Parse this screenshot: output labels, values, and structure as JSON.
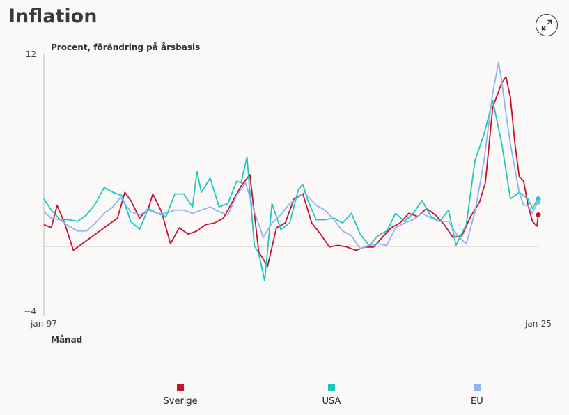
{
  "header": {
    "title": "Inflation",
    "expand_icon": "expand-arrows-icon"
  },
  "chart_data": {
    "type": "line",
    "ylabel": "Procent, förändring på årsbasis",
    "xlabel": "Månad",
    "ylim": [
      -4,
      12
    ],
    "y_tick_labels": [
      "12",
      "−4"
    ],
    "x_tick_labels": [
      "jan-97",
      "jan-25"
    ],
    "x_start": "1997-01",
    "x_end": "2025-01",
    "grid": false,
    "legend_position": "bottom",
    "series": [
      {
        "name": "Sverige",
        "color": "#c8102e",
        "points": [
          [
            "1997-01",
            1.4
          ],
          [
            "1997-06",
            1.2
          ],
          [
            "1997-10",
            2.6
          ],
          [
            "1998-03",
            1.5
          ],
          [
            "1998-09",
            -0.2
          ],
          [
            "1999-03",
            0.2
          ],
          [
            "1999-09",
            0.6
          ],
          [
            "2000-03",
            1.0
          ],
          [
            "2000-09",
            1.4
          ],
          [
            "2001-03",
            1.8
          ],
          [
            "2001-08",
            3.4
          ],
          [
            "2001-12",
            2.9
          ],
          [
            "2002-06",
            1.8
          ],
          [
            "2002-12",
            2.4
          ],
          [
            "2003-03",
            3.3
          ],
          [
            "2003-09",
            2.2
          ],
          [
            "2004-03",
            0.2
          ],
          [
            "2004-09",
            1.2
          ],
          [
            "2005-03",
            0.8
          ],
          [
            "2005-09",
            1.0
          ],
          [
            "2006-03",
            1.4
          ],
          [
            "2006-09",
            1.5
          ],
          [
            "2007-03",
            1.8
          ],
          [
            "2007-09",
            2.8
          ],
          [
            "2008-03",
            3.8
          ],
          [
            "2008-09",
            4.5
          ],
          [
            "2009-03",
            -0.3
          ],
          [
            "2009-09",
            -1.2
          ],
          [
            "2010-03",
            1.2
          ],
          [
            "2010-09",
            1.5
          ],
          [
            "2011-03",
            3.0
          ],
          [
            "2011-09",
            3.3
          ],
          [
            "2012-03",
            1.5
          ],
          [
            "2012-09",
            0.8
          ],
          [
            "2013-03",
            0.0
          ],
          [
            "2013-09",
            0.1
          ],
          [
            "2014-03",
            0.0
          ],
          [
            "2014-09",
            -0.2
          ],
          [
            "2015-03",
            0.0
          ],
          [
            "2015-09",
            0.0
          ],
          [
            "2016-03",
            0.6
          ],
          [
            "2016-09",
            1.2
          ],
          [
            "2017-03",
            1.5
          ],
          [
            "2017-09",
            2.1
          ],
          [
            "2018-03",
            1.9
          ],
          [
            "2018-09",
            2.4
          ],
          [
            "2019-03",
            2.0
          ],
          [
            "2019-09",
            1.4
          ],
          [
            "2020-03",
            0.6
          ],
          [
            "2020-09",
            0.7
          ],
          [
            "2021-03",
            1.9
          ],
          [
            "2021-09",
            2.8
          ],
          [
            "2022-01",
            4.0
          ],
          [
            "2022-06",
            8.7
          ],
          [
            "2022-12",
            10.2
          ],
          [
            "2023-03",
            10.6
          ],
          [
            "2023-06",
            9.3
          ],
          [
            "2023-09",
            6.5
          ],
          [
            "2023-12",
            4.4
          ],
          [
            "2024-03",
            4.1
          ],
          [
            "2024-06",
            2.6
          ],
          [
            "2024-09",
            1.6
          ],
          [
            "2024-12",
            1.3
          ],
          [
            "2025-01",
            2.0
          ]
        ]
      },
      {
        "name": "USA",
        "color": "#1cc7c1",
        "points": [
          [
            "1997-01",
            3.0
          ],
          [
            "1997-06",
            2.3
          ],
          [
            "1997-12",
            1.7
          ],
          [
            "1998-06",
            1.7
          ],
          [
            "1998-12",
            1.6
          ],
          [
            "1999-06",
            2.0
          ],
          [
            "1999-12",
            2.7
          ],
          [
            "2000-06",
            3.7
          ],
          [
            "2000-12",
            3.4
          ],
          [
            "2001-06",
            3.2
          ],
          [
            "2001-12",
            1.6
          ],
          [
            "2002-06",
            1.1
          ],
          [
            "2002-12",
            2.4
          ],
          [
            "2003-06",
            2.1
          ],
          [
            "2003-12",
            1.9
          ],
          [
            "2004-06",
            3.3
          ],
          [
            "2004-12",
            3.3
          ],
          [
            "2005-06",
            2.5
          ],
          [
            "2005-09",
            4.7
          ],
          [
            "2005-12",
            3.4
          ],
          [
            "2006-06",
            4.3
          ],
          [
            "2006-12",
            2.5
          ],
          [
            "2007-06",
            2.7
          ],
          [
            "2007-12",
            4.1
          ],
          [
            "2008-03",
            4.0
          ],
          [
            "2008-07",
            5.6
          ],
          [
            "2008-12",
            0.1
          ],
          [
            "2009-03",
            -0.4
          ],
          [
            "2009-07",
            -2.1
          ],
          [
            "2009-12",
            2.7
          ],
          [
            "2010-06",
            1.1
          ],
          [
            "2010-12",
            1.5
          ],
          [
            "2011-06",
            3.6
          ],
          [
            "2011-09",
            3.9
          ],
          [
            "2011-12",
            3.0
          ],
          [
            "2012-06",
            1.7
          ],
          [
            "2012-12",
            1.7
          ],
          [
            "2013-06",
            1.8
          ],
          [
            "2013-12",
            1.5
          ],
          [
            "2014-06",
            2.1
          ],
          [
            "2014-12",
            0.8
          ],
          [
            "2015-06",
            0.1
          ],
          [
            "2015-12",
            0.7
          ],
          [
            "2016-06",
            1.0
          ],
          [
            "2016-12",
            2.1
          ],
          [
            "2017-06",
            1.6
          ],
          [
            "2017-12",
            2.1
          ],
          [
            "2018-06",
            2.9
          ],
          [
            "2018-12",
            1.9
          ],
          [
            "2019-06",
            1.6
          ],
          [
            "2019-12",
            2.3
          ],
          [
            "2020-05",
            0.1
          ],
          [
            "2020-12",
            1.4
          ],
          [
            "2021-06",
            5.4
          ],
          [
            "2021-12",
            7.0
          ],
          [
            "2022-06",
            9.1
          ],
          [
            "2022-12",
            6.5
          ],
          [
            "2023-06",
            3.0
          ],
          [
            "2023-12",
            3.4
          ],
          [
            "2024-06",
            3.0
          ],
          [
            "2024-09",
            2.4
          ],
          [
            "2024-12",
            2.9
          ],
          [
            "2025-01",
            3.0
          ]
        ]
      },
      {
        "name": "EU",
        "color": "#8fb3f2",
        "points": [
          [
            "1997-01",
            2.2
          ],
          [
            "1997-06",
            1.8
          ],
          [
            "1997-12",
            1.7
          ],
          [
            "1998-06",
            1.3
          ],
          [
            "1998-12",
            1.0
          ],
          [
            "1999-06",
            1.0
          ],
          [
            "1999-12",
            1.5
          ],
          [
            "2000-06",
            2.1
          ],
          [
            "2000-12",
            2.5
          ],
          [
            "2001-05",
            3.1
          ],
          [
            "2001-12",
            2.2
          ],
          [
            "2002-06",
            2.0
          ],
          [
            "2002-12",
            2.3
          ],
          [
            "2003-06",
            2.1
          ],
          [
            "2003-12",
            2.1
          ],
          [
            "2004-06",
            2.3
          ],
          [
            "2004-12",
            2.3
          ],
          [
            "2005-06",
            2.1
          ],
          [
            "2005-12",
            2.3
          ],
          [
            "2006-06",
            2.5
          ],
          [
            "2006-12",
            2.2
          ],
          [
            "2007-06",
            2.0
          ],
          [
            "2007-12",
            3.2
          ],
          [
            "2008-06",
            4.0
          ],
          [
            "2008-12",
            2.2
          ],
          [
            "2009-06",
            0.6
          ],
          [
            "2009-12",
            1.5
          ],
          [
            "2010-06",
            2.0
          ],
          [
            "2010-12",
            2.7
          ],
          [
            "2011-06",
            3.1
          ],
          [
            "2011-10",
            3.4
          ],
          [
            "2012-06",
            2.6
          ],
          [
            "2012-12",
            2.3
          ],
          [
            "2013-06",
            1.7
          ],
          [
            "2013-12",
            1.0
          ],
          [
            "2014-06",
            0.7
          ],
          [
            "2014-12",
            -0.1
          ],
          [
            "2015-06",
            0.1
          ],
          [
            "2015-12",
            0.2
          ],
          [
            "2016-06",
            0.1
          ],
          [
            "2016-12",
            1.2
          ],
          [
            "2017-06",
            1.5
          ],
          [
            "2017-12",
            1.7
          ],
          [
            "2018-06",
            2.1
          ],
          [
            "2018-12",
            1.8
          ],
          [
            "2019-06",
            1.6
          ],
          [
            "2019-12",
            1.6
          ],
          [
            "2020-06",
            0.7
          ],
          [
            "2020-12",
            0.2
          ],
          [
            "2021-06",
            2.2
          ],
          [
            "2021-12",
            5.3
          ],
          [
            "2022-06",
            9.6
          ],
          [
            "2022-10",
            11.5
          ],
          [
            "2022-12",
            10.4
          ],
          [
            "2023-03",
            8.3
          ],
          [
            "2023-06",
            6.4
          ],
          [
            "2023-09",
            4.9
          ],
          [
            "2023-12",
            3.4
          ],
          [
            "2024-03",
            2.6
          ],
          [
            "2024-06",
            2.6
          ],
          [
            "2024-09",
            2.1
          ],
          [
            "2024-12",
            2.7
          ],
          [
            "2025-01",
            2.8
          ]
        ]
      }
    ]
  }
}
